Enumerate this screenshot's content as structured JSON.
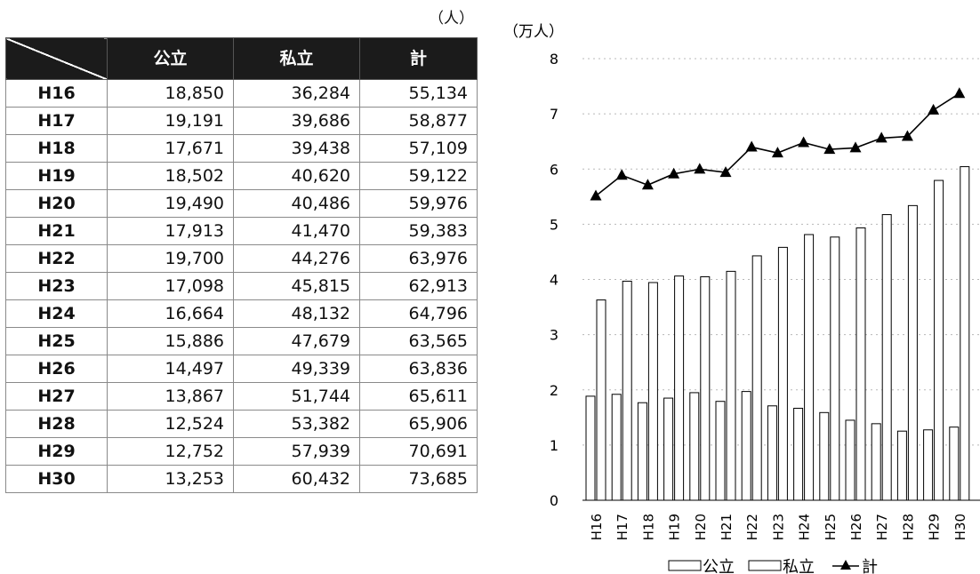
{
  "table": {
    "unit": "（人）",
    "headers": [
      "",
      "公立",
      "私立",
      "計"
    ],
    "rows": [
      [
        "H16",
        "18,850",
        "36,284",
        "55,134"
      ],
      [
        "H17",
        "19,191",
        "39,686",
        "58,877"
      ],
      [
        "H18",
        "17,671",
        "39,438",
        "57,109"
      ],
      [
        "H19",
        "18,502",
        "40,620",
        "59,122"
      ],
      [
        "H20",
        "19,490",
        "40,486",
        "59,976"
      ],
      [
        "H21",
        "17,913",
        "41,470",
        "59,383"
      ],
      [
        "H22",
        "19,700",
        "44,276",
        "63,976"
      ],
      [
        "H23",
        "17,098",
        "45,815",
        "62,913"
      ],
      [
        "H24",
        "16,664",
        "48,132",
        "64,796"
      ],
      [
        "H25",
        "15,886",
        "47,679",
        "63,565"
      ],
      [
        "H26",
        "14,497",
        "49,339",
        "63,836"
      ],
      [
        "H27",
        "13,867",
        "51,744",
        "65,611"
      ],
      [
        "H28",
        "12,524",
        "53,382",
        "65,906"
      ],
      [
        "H29",
        "12,752",
        "57,939",
        "70,691"
      ],
      [
        "H30",
        "13,253",
        "60,432",
        "73,685"
      ]
    ]
  },
  "chart_data": {
    "type": "bar",
    "ylabel": "（万人）",
    "ylim": [
      0,
      8
    ],
    "yticks": [
      "0",
      "1",
      "2",
      "3",
      "4",
      "5",
      "6",
      "7",
      "8"
    ],
    "grid": true,
    "legend_position": "bottom",
    "categories": [
      "H16",
      "H17",
      "H18",
      "H19",
      "H20",
      "H21",
      "H22",
      "H23",
      "H24",
      "H25",
      "H26",
      "H27",
      "H28",
      "H29",
      "H30"
    ],
    "series": [
      {
        "name": "公立",
        "type": "bar",
        "color": "#ffffff",
        "values": [
          1.885,
          1.9191,
          1.7671,
          1.8502,
          1.949,
          1.7913,
          1.97,
          1.7098,
          1.6664,
          1.5886,
          1.4497,
          1.3867,
          1.2524,
          1.2752,
          1.3253
        ]
      },
      {
        "name": "私立",
        "type": "bar",
        "color": "#ffffff",
        "values": [
          3.6284,
          3.9686,
          3.9438,
          4.062,
          4.0486,
          4.147,
          4.4276,
          4.5815,
          4.8132,
          4.7679,
          4.9339,
          5.1744,
          5.3382,
          5.7939,
          6.0432
        ]
      },
      {
        "name": "計",
        "type": "line",
        "marker": "triangle",
        "color": "#000000",
        "values": [
          5.5134,
          5.8877,
          5.7109,
          5.9122,
          5.9976,
          5.9383,
          6.3976,
          6.2913,
          6.4796,
          6.3565,
          6.3836,
          6.5611,
          6.5906,
          7.0691,
          7.3685
        ]
      }
    ]
  }
}
